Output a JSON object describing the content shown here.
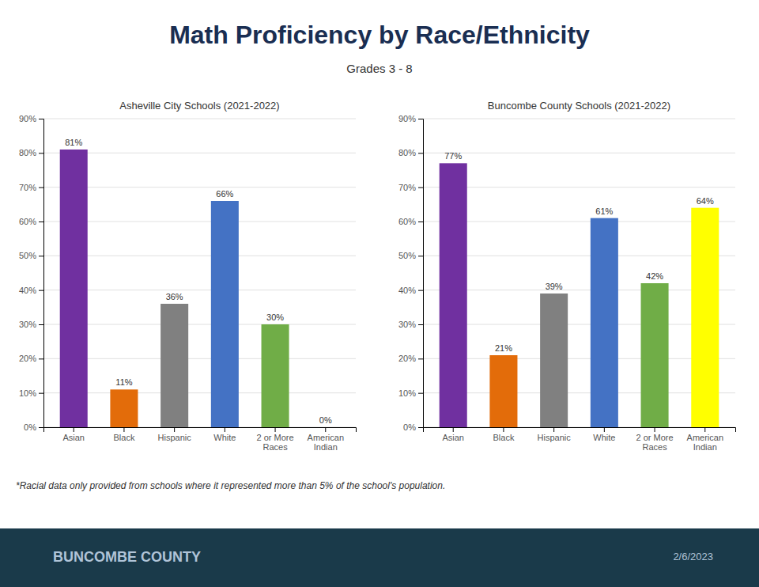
{
  "title": "Math Proficiency by Race/Ethnicity",
  "subtitle": "Grades 3 - 8",
  "annotations": [
    "*Racial data only provided from schools where it represented more than 5% of the school's population.",
    "BUNCOMBE COUNTY",
    "2/6/2023"
  ],
  "chart_data": [
    {
      "type": "bar",
      "title": "Asheville City Schools (2021-2022)",
      "categories": [
        "Asian",
        "Black",
        "Hispanic",
        "White",
        "2 or More Races",
        "American Indian"
      ],
      "values": [
        81,
        11,
        36,
        66,
        30,
        0
      ],
      "value_labels": [
        "81%",
        "11%",
        "36%",
        "66%",
        "30%",
        "0%"
      ],
      "colors": [
        "#7030a0",
        "#e36c0a",
        "#808080",
        "#4472c4",
        "#70ad47",
        "#ffff00"
      ],
      "ylim": [
        0,
        90
      ],
      "yticks": [
        {
          "value": 0,
          "label": "0%"
        },
        {
          "value": 10,
          "label": "10%"
        },
        {
          "value": 20,
          "label": "20%"
        },
        {
          "value": 30,
          "label": "30%"
        },
        {
          "value": 40,
          "label": "40%"
        },
        {
          "value": 50,
          "label": "50%"
        },
        {
          "value": 60,
          "label": "60%"
        },
        {
          "value": 70,
          "label": "70%"
        },
        {
          "value": 80,
          "label": "80%"
        },
        {
          "value": 90,
          "label": "90%"
        }
      ],
      "grid": true,
      "data_labels": true
    },
    {
      "type": "bar",
      "title": "Buncombe County Schools (2021-2022)",
      "categories": [
        "Asian",
        "Black",
        "Hispanic",
        "White",
        "2 or More Races",
        "American Indian"
      ],
      "values": [
        77,
        21,
        39,
        61,
        42,
        64
      ],
      "value_labels": [
        "77%",
        "21%",
        "39%",
        "61%",
        "42%",
        "64%"
      ],
      "colors": [
        "#7030a0",
        "#e36c0a",
        "#808080",
        "#4472c4",
        "#70ad47",
        "#ffff00"
      ],
      "ylim": [
        0,
        90
      ],
      "yticks": [
        {
          "value": 0,
          "label": "0%"
        },
        {
          "value": 10,
          "label": "10%"
        },
        {
          "value": 20,
          "label": "20%"
        },
        {
          "value": 30,
          "label": "30%"
        },
        {
          "value": 40,
          "label": "40%"
        },
        {
          "value": 50,
          "label": "50%"
        },
        {
          "value": 60,
          "label": "60%"
        },
        {
          "value": 70,
          "label": "70%"
        },
        {
          "value": 80,
          "label": "80%"
        },
        {
          "value": 90,
          "label": "90%"
        }
      ],
      "grid": true,
      "data_labels": true
    }
  ]
}
